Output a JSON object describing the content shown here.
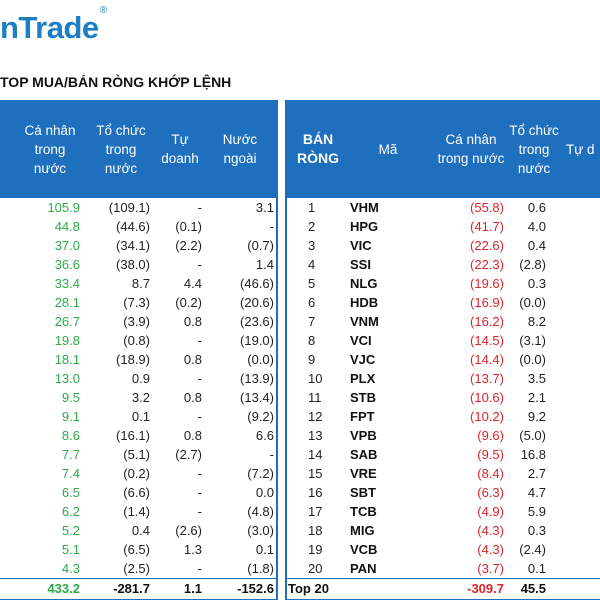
{
  "brand": {
    "logo_text": "nTrade",
    "logo_mark": "®"
  },
  "title": "TOP MUA/BÁN RÒNG KHỚP LỆNH",
  "left": {
    "headers": [
      "Cá nhân\ntrong\nnước",
      "Tổ chức\ntrong\nnước",
      "Tự\ndoanh",
      "Nước\nngoài"
    ],
    "rows": [
      {
        "ca_nhan": "105.9",
        "to_chuc": "(109.1)",
        "tu_doanh": "-",
        "nuoc_ngoai": "3.1"
      },
      {
        "ca_nhan": "44.8",
        "to_chuc": "(44.6)",
        "tu_doanh": "(0.1)",
        "nuoc_ngoai": "-"
      },
      {
        "ca_nhan": "37.0",
        "to_chuc": "(34.1)",
        "tu_doanh": "(2.2)",
        "nuoc_ngoai": "(0.7)"
      },
      {
        "ca_nhan": "36.6",
        "to_chuc": "(38.0)",
        "tu_doanh": "-",
        "nuoc_ngoai": "1.4"
      },
      {
        "ca_nhan": "33.4",
        "to_chuc": "8.7",
        "tu_doanh": "4.4",
        "nuoc_ngoai": "(46.6)"
      },
      {
        "ca_nhan": "28.1",
        "to_chuc": "(7.3)",
        "tu_doanh": "(0.2)",
        "nuoc_ngoai": "(20.6)"
      },
      {
        "ca_nhan": "26.7",
        "to_chuc": "(3.9)",
        "tu_doanh": "0.8",
        "nuoc_ngoai": "(23.6)"
      },
      {
        "ca_nhan": "19.8",
        "to_chuc": "(0.8)",
        "tu_doanh": "-",
        "nuoc_ngoai": "(19.0)"
      },
      {
        "ca_nhan": "18.1",
        "to_chuc": "(18.9)",
        "tu_doanh": "0.8",
        "nuoc_ngoai": "(0.0)"
      },
      {
        "ca_nhan": "13.0",
        "to_chuc": "0.9",
        "tu_doanh": "-",
        "nuoc_ngoai": "(13.9)"
      },
      {
        "ca_nhan": "9.5",
        "to_chuc": "3.2",
        "tu_doanh": "0.8",
        "nuoc_ngoai": "(13.4)"
      },
      {
        "ca_nhan": "9.1",
        "to_chuc": "0.1",
        "tu_doanh": "-",
        "nuoc_ngoai": "(9.2)"
      },
      {
        "ca_nhan": "8.6",
        "to_chuc": "(16.1)",
        "tu_doanh": "0.8",
        "nuoc_ngoai": "6.6"
      },
      {
        "ca_nhan": "7.7",
        "to_chuc": "(5.1)",
        "tu_doanh": "(2.7)",
        "nuoc_ngoai": "-"
      },
      {
        "ca_nhan": "7.4",
        "to_chuc": "(0.2)",
        "tu_doanh": "-",
        "nuoc_ngoai": "(7.2)"
      },
      {
        "ca_nhan": "6.5",
        "to_chuc": "(6.6)",
        "tu_doanh": "-",
        "nuoc_ngoai": "0.0"
      },
      {
        "ca_nhan": "6.2",
        "to_chuc": "(1.4)",
        "tu_doanh": "-",
        "nuoc_ngoai": "(4.8)"
      },
      {
        "ca_nhan": "5.2",
        "to_chuc": "0.4",
        "tu_doanh": "(2.6)",
        "nuoc_ngoai": "(3.0)"
      },
      {
        "ca_nhan": "5.1",
        "to_chuc": "(6.5)",
        "tu_doanh": "1.3",
        "nuoc_ngoai": "0.1"
      },
      {
        "ca_nhan": "4.3",
        "to_chuc": "(2.5)",
        "tu_doanh": "-",
        "nuoc_ngoai": "(1.8)"
      }
    ],
    "total": {
      "ca_nhan": "433.2",
      "to_chuc": "-281.7",
      "tu_doanh": "1.1",
      "nuoc_ngoai": "-152.6"
    }
  },
  "right": {
    "headers": [
      "BÁN\nRÒNG",
      "Mã",
      "Cá nhân\ntrong nước",
      "Tổ chức\ntrong\nnước",
      "Tự d"
    ],
    "rows": [
      {
        "rank": "1",
        "ticker": "VHM",
        "ca_nhan": "(55.8)",
        "to_chuc": "0.6"
      },
      {
        "rank": "2",
        "ticker": "HPG",
        "ca_nhan": "(41.7)",
        "to_chuc": "4.0"
      },
      {
        "rank": "3",
        "ticker": "VIC",
        "ca_nhan": "(22.6)",
        "to_chuc": "0.4"
      },
      {
        "rank": "4",
        "ticker": "SSI",
        "ca_nhan": "(22.3)",
        "to_chuc": "(2.8)"
      },
      {
        "rank": "5",
        "ticker": "NLG",
        "ca_nhan": "(19.6)",
        "to_chuc": "0.3"
      },
      {
        "rank": "6",
        "ticker": "HDB",
        "ca_nhan": "(16.9)",
        "to_chuc": "(0.0)"
      },
      {
        "rank": "7",
        "ticker": "VNM",
        "ca_nhan": "(16.2)",
        "to_chuc": "8.2"
      },
      {
        "rank": "8",
        "ticker": "VCI",
        "ca_nhan": "(14.5)",
        "to_chuc": "(3.1)"
      },
      {
        "rank": "9",
        "ticker": "VJC",
        "ca_nhan": "(14.4)",
        "to_chuc": "(0.0)"
      },
      {
        "rank": "10",
        "ticker": "PLX",
        "ca_nhan": "(13.7)",
        "to_chuc": "3.5"
      },
      {
        "rank": "11",
        "ticker": "STB",
        "ca_nhan": "(10.6)",
        "to_chuc": "2.1"
      },
      {
        "rank": "12",
        "ticker": "FPT",
        "ca_nhan": "(10.2)",
        "to_chuc": "9.2"
      },
      {
        "rank": "13",
        "ticker": "VPB",
        "ca_nhan": "(9.6)",
        "to_chuc": "(5.0)"
      },
      {
        "rank": "14",
        "ticker": "SAB",
        "ca_nhan": "(9.5)",
        "to_chuc": "16.8"
      },
      {
        "rank": "15",
        "ticker": "VRE",
        "ca_nhan": "(8.4)",
        "to_chuc": "2.7"
      },
      {
        "rank": "16",
        "ticker": "SBT",
        "ca_nhan": "(6.3)",
        "to_chuc": "4.7"
      },
      {
        "rank": "17",
        "ticker": "TCB",
        "ca_nhan": "(4.9)",
        "to_chuc": "5.9"
      },
      {
        "rank": "18",
        "ticker": "MIG",
        "ca_nhan": "(4.3)",
        "to_chuc": "0.3"
      },
      {
        "rank": "19",
        "ticker": "VCB",
        "ca_nhan": "(4.3)",
        "to_chuc": "(2.4)"
      },
      {
        "rank": "20",
        "ticker": "PAN",
        "ca_nhan": "(3.7)",
        "to_chuc": "0.1"
      }
    ],
    "total": {
      "label": "Top 20",
      "ca_nhan": "-309.7",
      "to_chuc": "45.5"
    }
  },
  "colors": {
    "header_bg": "#1e6fbd",
    "positive": "#2eaa48",
    "negative": "#d9252b",
    "brand": "#1c7fc4"
  }
}
